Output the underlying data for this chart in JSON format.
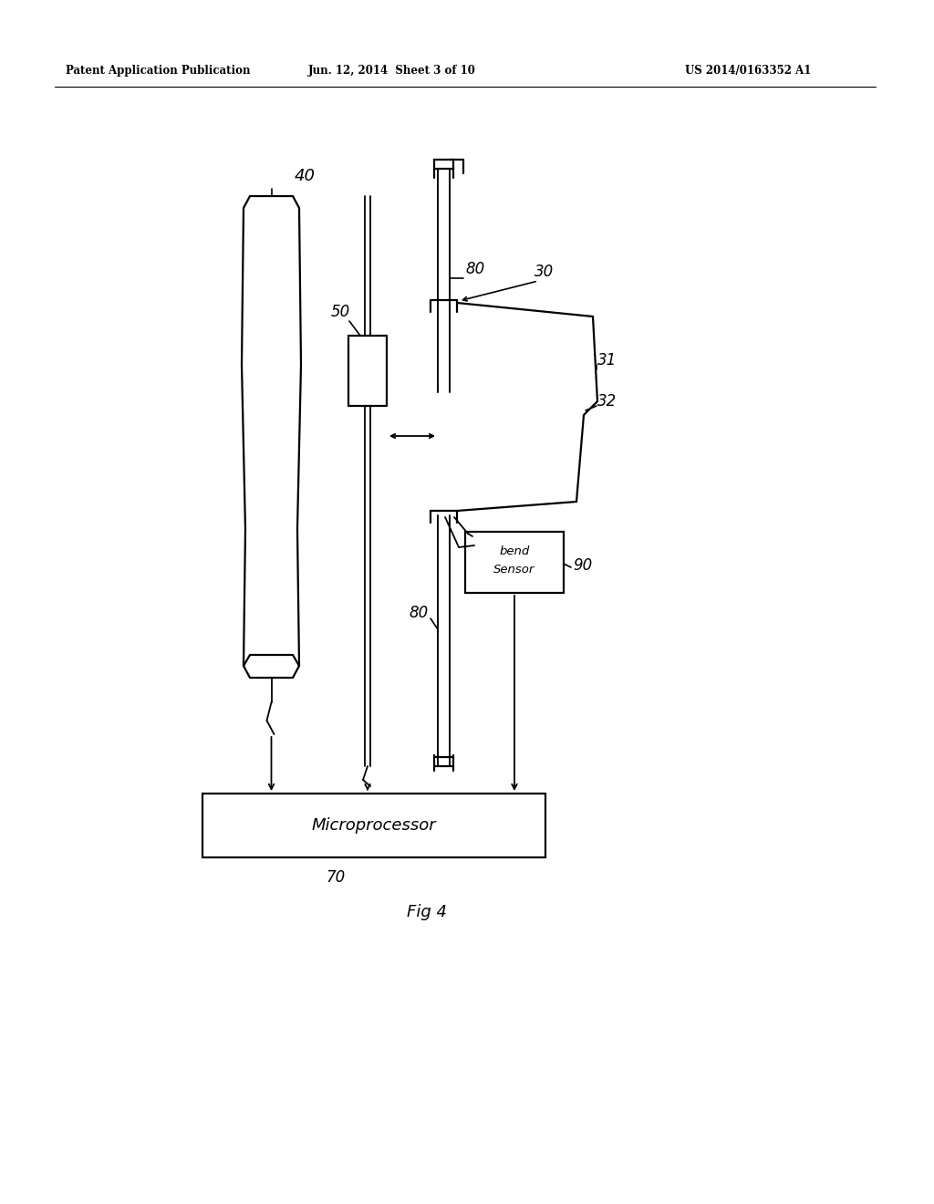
{
  "background_color": "#ffffff",
  "header_left": "Patent Application Publication",
  "header_mid": "Jun. 12, 2014  Sheet 3 of 10",
  "header_right": "US 2014/0163352 A1",
  "fig_label": "Fig 4",
  "label_70": "70",
  "label_40": "40",
  "label_50": "50",
  "label_80a": "80",
  "label_80b": "80",
  "label_30": "30",
  "label_31": "31",
  "label_32": "32",
  "label_90": "90",
  "bend_sensor_line1": "bend",
  "bend_sensor_line2": "Sensor",
  "microprocessor_text": "Microprocessor"
}
